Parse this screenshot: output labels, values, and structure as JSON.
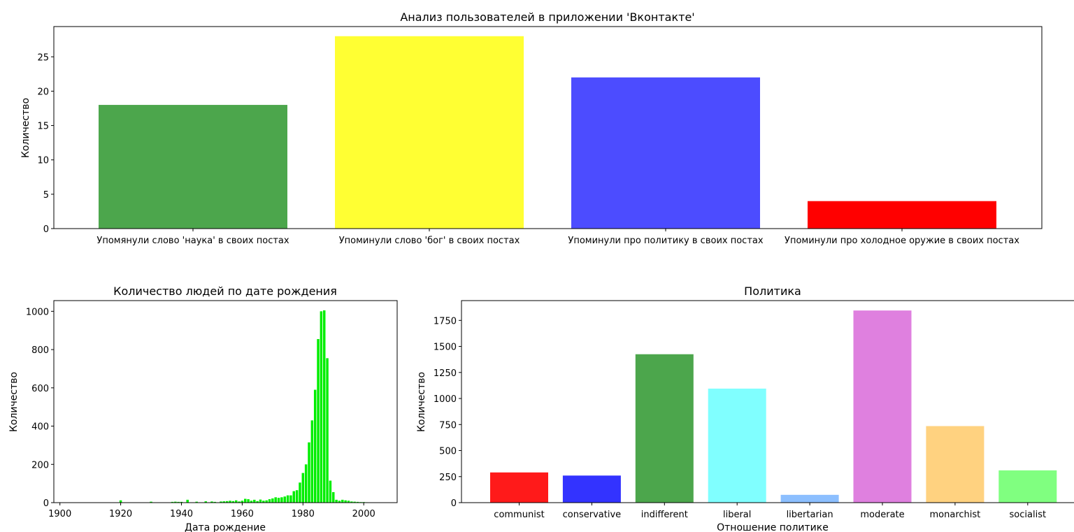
{
  "chart_data": [
    {
      "type": "bar",
      "title": "Анализ пользователей в приложении 'Вконтакте'",
      "xlabel": "",
      "ylabel": "Количество",
      "categories": [
        "Упомянули слово 'наука' в своих постах",
        "Упоминули слово 'бог' в своих постах",
        "Упоминули про политику в своих постах",
        "Упоминули про холодное оружие в своих постах"
      ],
      "values": [
        18,
        28,
        22,
        4
      ],
      "colors": [
        "#4ca64c",
        "#ffff33",
        "#4c4cff",
        "#ff0000"
      ],
      "ylim": [
        0,
        29.4
      ],
      "yticks": [
        0,
        5,
        10,
        15,
        20,
        25
      ]
    },
    {
      "type": "bar",
      "title": "Количество людей по дате рождения",
      "xlabel": "Дата рождение",
      "ylabel": "Количество",
      "x": [
        1920,
        1930,
        1937,
        1938,
        1939,
        1940,
        1942,
        1945,
        1948,
        1950,
        1951,
        1953,
        1954,
        1955,
        1956,
        1957,
        1958,
        1959,
        1960,
        1961,
        1962,
        1963,
        1964,
        1965,
        1966,
        1967,
        1968,
        1969,
        1970,
        1971,
        1972,
        1973,
        1974,
        1975,
        1976,
        1977,
        1978,
        1979,
        1980,
        1981,
        1982,
        1983,
        1984,
        1985,
        1986,
        1987,
        1988,
        1989,
        1990,
        1991,
        1992,
        1993,
        1994,
        1995,
        1996,
        1997,
        1998,
        1999,
        2000,
        2001
      ],
      "values": [
        12,
        5,
        4,
        5,
        4,
        4,
        15,
        5,
        7,
        6,
        4,
        6,
        7,
        8,
        10,
        8,
        12,
        6,
        10,
        20,
        18,
        10,
        15,
        8,
        16,
        10,
        12,
        18,
        22,
        28,
        25,
        28,
        32,
        38,
        38,
        60,
        65,
        105,
        155,
        200,
        315,
        430,
        590,
        855,
        1000,
        1005,
        755,
        115,
        55,
        15,
        10,
        15,
        12,
        10,
        6,
        5,
        4,
        3,
        3,
        2
      ],
      "color": "#00ee00",
      "xlim": [
        1898,
        2011
      ],
      "ylim": [
        0,
        1056
      ],
      "xticks": [
        1900,
        1920,
        1940,
        1960,
        1980,
        2000
      ],
      "yticks": [
        0,
        200,
        400,
        600,
        800,
        1000
      ]
    },
    {
      "type": "bar",
      "title": "Политика",
      "xlabel": "Отношение политике",
      "ylabel": "Количество",
      "categories": [
        "communist",
        "conservative",
        "indifferent",
        "liberal",
        "libertarian",
        "moderate",
        "monarchist",
        "socialist"
      ],
      "values": [
        290,
        260,
        1425,
        1095,
        75,
        1845,
        735,
        310
      ],
      "colors": [
        "#ff1a1a",
        "#3333ff",
        "#4ca64c",
        "#80ffff",
        "#8cbfff",
        "#df80df",
        "#ffd280",
        "#80ff80"
      ],
      "ylim": [
        0,
        1940
      ],
      "yticks": [
        0,
        250,
        500,
        750,
        1000,
        1250,
        1500,
        1750
      ]
    }
  ]
}
